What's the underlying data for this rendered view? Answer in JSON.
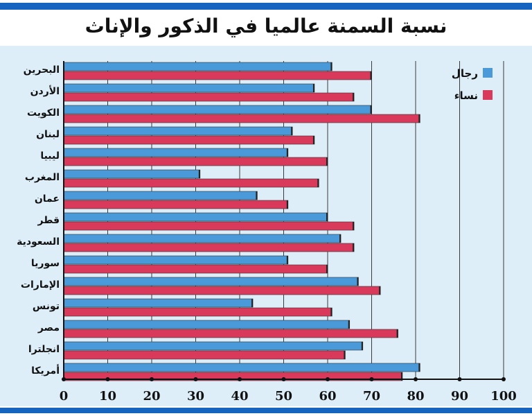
{
  "chart_data": {
    "type": "bar",
    "orientation": "horizontal",
    "title": "نسبة السمنة عالميا في الذكور والإناث",
    "categories": [
      "البحرين",
      "الأردن",
      "الكويت",
      "لبنان",
      "ليبيا",
      "المغرب",
      "عمان",
      "قطر",
      "السعودية",
      "سوريا",
      "الإمارات",
      "تونس",
      "مصر",
      "انجلترا",
      "أمريكا"
    ],
    "series": [
      {
        "name": "رجال",
        "color": "#4a9ad9",
        "values": [
          61,
          57,
          70,
          52,
          51,
          31,
          44,
          60,
          63,
          51,
          67,
          43,
          65,
          68,
          81
        ]
      },
      {
        "name": "نساء",
        "color": "#d93a5c",
        "values": [
          70,
          66,
          81,
          57,
          60,
          58,
          51,
          66,
          66,
          60,
          72,
          61,
          76,
          64,
          77
        ]
      }
    ],
    "xlim": [
      0,
      100
    ],
    "xticks": [
      "0",
      "10",
      "20",
      "30",
      "40",
      "50",
      "60",
      "70",
      "80",
      "90",
      "100"
    ],
    "grid": true,
    "legend_position": "top-right"
  }
}
